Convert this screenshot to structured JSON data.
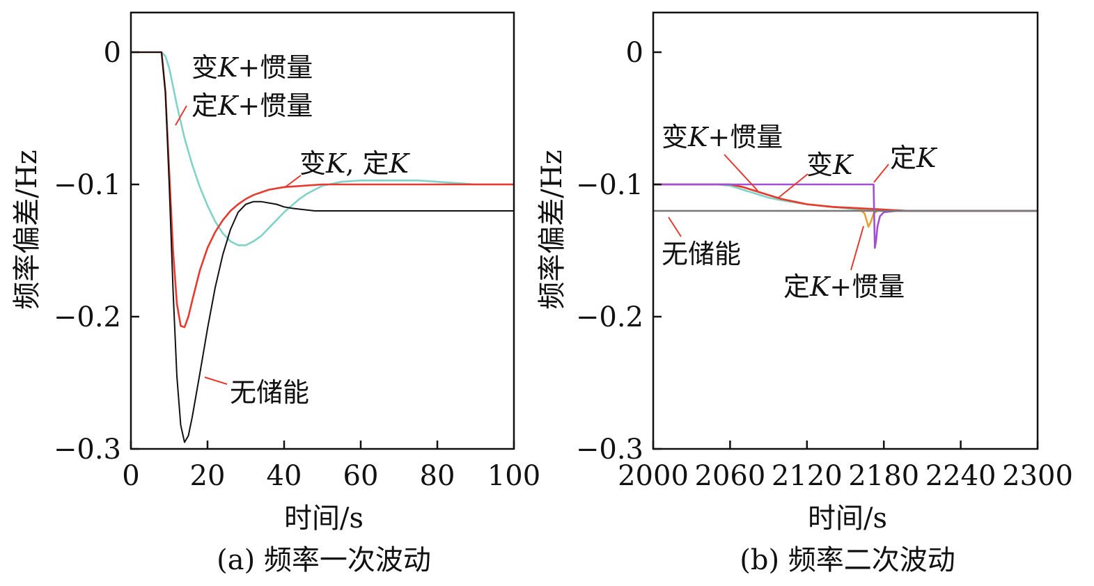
{
  "chart_data": [
    {
      "type": "line",
      "caption": "(a) 频率一次波动",
      "xlabel": "时间/s",
      "ylabel": "频率偏差/Hz",
      "xlim": [
        0,
        100
      ],
      "ylim": [
        -0.3,
        0.03
      ],
      "x_ticks": [
        0,
        20,
        40,
        60,
        80,
        100
      ],
      "x_tick_labels": [
        "0",
        "20",
        "40",
        "60",
        "80",
        "100"
      ],
      "y_ticks": [
        0,
        -0.1,
        -0.2,
        -0.3
      ],
      "y_tick_labels": [
        "0",
        "−0.1",
        "−0.2",
        "−0.3"
      ],
      "series": [
        {
          "color": "#7fd3c8",
          "x": [
            0,
            8,
            9,
            10,
            12,
            14,
            16,
            18,
            20,
            22,
            24,
            26,
            28,
            30,
            32,
            34,
            36,
            38,
            40,
            42,
            44,
            46,
            48,
            50,
            55,
            60,
            65,
            70,
            75,
            80,
            85,
            90,
            95,
            100
          ],
          "y": [
            0,
            0,
            -0.003,
            -0.012,
            -0.04,
            -0.065,
            -0.085,
            -0.102,
            -0.116,
            -0.128,
            -0.137,
            -0.143,
            -0.146,
            -0.146,
            -0.143,
            -0.139,
            -0.133,
            -0.127,
            -0.121,
            -0.116,
            -0.111,
            -0.107,
            -0.104,
            -0.101,
            -0.098,
            -0.097,
            -0.097,
            -0.097,
            -0.097,
            -0.098,
            -0.099,
            -0.1,
            -0.1,
            -0.1
          ]
        },
        {
          "color": "#e8392f",
          "x": [
            0,
            8,
            9,
            10,
            11,
            12,
            13,
            14,
            15,
            16,
            18,
            20,
            22,
            24,
            26,
            28,
            30,
            32,
            34,
            36,
            38,
            40,
            45,
            50,
            55,
            60,
            70,
            80,
            90,
            100
          ],
          "y": [
            0,
            0,
            -0.03,
            -0.09,
            -0.15,
            -0.19,
            -0.207,
            -0.208,
            -0.2,
            -0.188,
            -0.165,
            -0.148,
            -0.136,
            -0.127,
            -0.12,
            -0.115,
            -0.111,
            -0.108,
            -0.106,
            -0.104,
            -0.103,
            -0.102,
            -0.101,
            -0.1,
            -0.1,
            -0.1,
            -0.1,
            -0.1,
            -0.1,
            -0.1
          ]
        },
        {
          "color": "#111111",
          "x": [
            0,
            8,
            9,
            10,
            11,
            12,
            13,
            14,
            15,
            16,
            18,
            20,
            22,
            24,
            26,
            28,
            30,
            32,
            34,
            36,
            38,
            40,
            42,
            45,
            48,
            50,
            55,
            60,
            70,
            80,
            90,
            100
          ],
          "y": [
            0,
            0,
            -0.03,
            -0.1,
            -0.18,
            -0.245,
            -0.282,
            -0.295,
            -0.29,
            -0.276,
            -0.243,
            -0.209,
            -0.178,
            -0.153,
            -0.134,
            -0.121,
            -0.115,
            -0.113,
            -0.113,
            -0.114,
            -0.115,
            -0.117,
            -0.118,
            -0.119,
            -0.12,
            -0.12,
            -0.12,
            -0.12,
            -0.12,
            -0.12,
            -0.12,
            -0.12
          ]
        }
      ],
      "annotations": [
        {
          "text": "变K+惯量",
          "italic": "K"
        },
        {
          "text": "定K+惯量",
          "italic": "K"
        },
        {
          "text": "变K, 定K",
          "italic": "K"
        },
        {
          "text": "无储能"
        }
      ]
    },
    {
      "type": "line",
      "caption": "(b) 频率二次波动",
      "xlabel": "时间/s",
      "ylabel": "频率偏差/Hz",
      "xlim": [
        2000,
        2300
      ],
      "ylim": [
        -0.3,
        0.03
      ],
      "x_ticks": [
        2000,
        2060,
        2120,
        2180,
        2240,
        2300
      ],
      "x_tick_labels": [
        "2000",
        "2060",
        "2120",
        "2180",
        "2240",
        "2300"
      ],
      "y_ticks": [
        0,
        -0.1,
        -0.2,
        -0.3
      ],
      "y_tick_labels": [
        "0",
        "−0.1",
        "−0.2",
        "−0.3"
      ],
      "series": [
        {
          "color": "#7fd3c8",
          "x": [
            2000,
            2040,
            2050,
            2060,
            2070,
            2080,
            2090,
            2100,
            2120,
            2140,
            2160,
            2180,
            2200,
            2240,
            2300
          ],
          "y": [
            -0.1,
            -0.1,
            -0.1,
            -0.101,
            -0.104,
            -0.107,
            -0.11,
            -0.112,
            -0.115,
            -0.117,
            -0.119,
            -0.12,
            -0.12,
            -0.12,
            -0.12
          ]
        },
        {
          "color": "#e8a030",
          "x": [
            2000,
            2040,
            2050,
            2060,
            2070,
            2080,
            2090,
            2100,
            2120,
            2140,
            2160,
            2165,
            2168,
            2170,
            2172,
            2175,
            2180,
            2200,
            2240,
            2300
          ],
          "y": [
            -0.1,
            -0.1,
            -0.1,
            -0.1,
            -0.102,
            -0.105,
            -0.108,
            -0.111,
            -0.115,
            -0.117,
            -0.118,
            -0.122,
            -0.132,
            -0.128,
            -0.122,
            -0.12,
            -0.12,
            -0.12,
            -0.12,
            -0.12
          ]
        },
        {
          "color": "#e8392f",
          "x": [
            2000,
            2040,
            2050,
            2060,
            2070,
            2080,
            2090,
            2100,
            2120,
            2140,
            2160,
            2180,
            2200,
            2240,
            2300
          ],
          "y": [
            -0.1,
            -0.1,
            -0.1,
            -0.1,
            -0.102,
            -0.105,
            -0.108,
            -0.111,
            -0.115,
            -0.117,
            -0.118,
            -0.119,
            -0.12,
            -0.12,
            -0.12
          ]
        },
        {
          "color": "#a050d0",
          "x": [
            2000,
            2172,
            2172.5,
            2173,
            2174,
            2175,
            2177,
            2180,
            2190,
            2300
          ],
          "y": [
            -0.1,
            -0.1,
            -0.125,
            -0.148,
            -0.142,
            -0.132,
            -0.124,
            -0.121,
            -0.12,
            -0.12
          ]
        },
        {
          "color": "#777777",
          "x": [
            2000,
            2300
          ],
          "y": [
            -0.12,
            -0.12
          ]
        }
      ],
      "annotations": [
        {
          "text": "变K+惯量",
          "italic": "K"
        },
        {
          "text": "变K",
          "italic": "K"
        },
        {
          "text": "定K",
          "italic": "K"
        },
        {
          "text": "无储能"
        },
        {
          "text": "定K+惯量",
          "italic": "K"
        }
      ]
    }
  ]
}
